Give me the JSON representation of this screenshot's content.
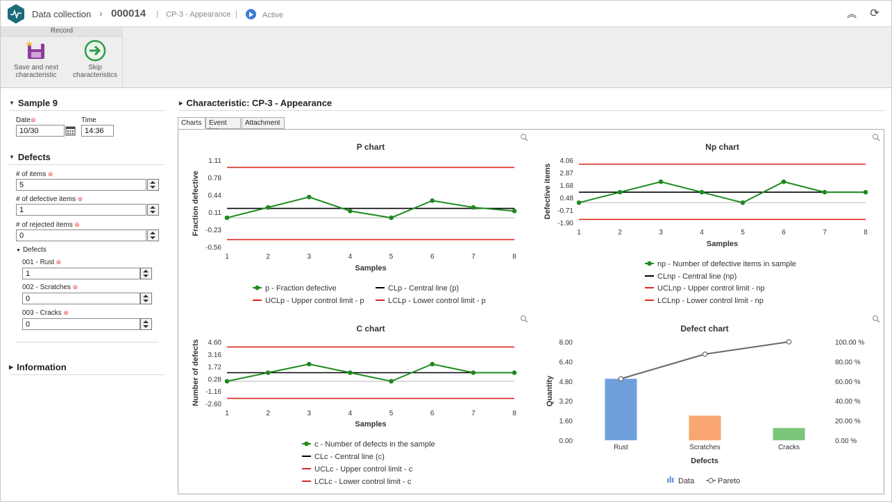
{
  "header": {
    "app_title": "Data collection",
    "record_id": "000014",
    "characteristic": "CP-3 - Appearance",
    "status": "Active"
  },
  "toolbar": {
    "group_label": "Record",
    "save_next_line1": "Save and next",
    "save_next_line2": "characteristic",
    "skip_line1": "Skip",
    "skip_line2": "characteristics"
  },
  "sample": {
    "title": "Sample 9",
    "date_label": "Date",
    "date_value": "10/30",
    "time_label": "Time",
    "time_value": "14:36"
  },
  "defects": {
    "title": "Defects",
    "items_label": "# of items",
    "items_value": "5",
    "defective_label": "# of defective items",
    "defective_value": "1",
    "rejected_label": "# of rejected items",
    "rejected_value": "0",
    "sub_title": "Defects",
    "list": [
      {
        "label": "001 - Rust",
        "value": "1"
      },
      {
        "label": "002 - Scratches",
        "value": "0"
      },
      {
        "label": "003 - Cracks",
        "value": "0"
      }
    ]
  },
  "information": {
    "title": "Information"
  },
  "main": {
    "title": "Characteristic: CP-3 - Appearance",
    "tabs": [
      "Charts",
      "Event log",
      "Attachment"
    ]
  },
  "chart_data": [
    {
      "type": "line",
      "title": "P chart",
      "xlabel": "Samples",
      "ylabel": "Fraction defective",
      "x": [
        1,
        2,
        3,
        4,
        5,
        6,
        7,
        8
      ],
      "yticks": [
        "1.11",
        "0.78",
        "0.44",
        "0.11",
        "-0.23",
        "-0.56"
      ],
      "ylim": [
        -0.56,
        1.11
      ],
      "series": [
        {
          "name": "p - Fraction defective",
          "values": [
            0,
            0.2,
            0.4,
            0.13,
            0,
            0.33,
            0.2,
            0.13
          ],
          "color": "#1e8a1e",
          "markers": true
        },
        {
          "name": "CLp - Central line (p)",
          "values": [
            0.18,
            0.18,
            0.18,
            0.18,
            0.18,
            0.18,
            0.18,
            0.18
          ],
          "color": "#000000"
        },
        {
          "name": "UCLp - Upper control limit - p",
          "values": [
            0.97,
            0.97,
            0.97,
            0.97,
            0.97,
            0.97,
            0.97,
            0.97
          ],
          "color": "#d9261c"
        },
        {
          "name": "LCLp - Lower control limit - p",
          "values": [
            -0.42,
            -0.42,
            -0.42,
            -0.42,
            -0.42,
            -0.42,
            -0.42,
            -0.42
          ],
          "color": "#d9261c"
        }
      ]
    },
    {
      "type": "line",
      "title": "Np chart",
      "xlabel": "Samples",
      "ylabel": "Defective items",
      "x": [
        1,
        2,
        3,
        4,
        5,
        6,
        7,
        8
      ],
      "yticks": [
        "4.06",
        "2.87",
        "1.68",
        "0.48",
        "-0.71",
        "-1.90"
      ],
      "ylim": [
        -1.9,
        4.06
      ],
      "series": [
        {
          "name": "np - Number of defective items in sample",
          "values": [
            0,
            1,
            2,
            1,
            0,
            2,
            1,
            1
          ],
          "color": "#1e8a1e",
          "markers": true
        },
        {
          "name": "CLnp - Central line (np)",
          "values": [
            1,
            1,
            1,
            1,
            1,
            1,
            1,
            1
          ],
          "color": "#000000"
        },
        {
          "name": "UCLnp - Upper control limit - np",
          "values": [
            3.68,
            3.68,
            3.68,
            3.68,
            3.68,
            3.68,
            3.68,
            3.68
          ],
          "color": "#d9261c"
        },
        {
          "name": "LCLnp - Lower control limit - np",
          "values": [
            -1.6,
            -1.6,
            -1.6,
            -1.6,
            -1.6,
            -1.6,
            -1.6,
            -1.6
          ],
          "color": "#d9261c"
        }
      ]
    },
    {
      "type": "line",
      "title": "C chart",
      "xlabel": "Samples",
      "ylabel": "Number of defects",
      "x": [
        1,
        2,
        3,
        4,
        5,
        6,
        7,
        8
      ],
      "yticks": [
        "4.60",
        "3.16",
        "1.72",
        "0.28",
        "-1.16",
        "-2.60"
      ],
      "ylim": [
        -2.6,
        4.6
      ],
      "series": [
        {
          "name": "c - Number of defects in the sample",
          "values": [
            0,
            1,
            2,
            1,
            0,
            2,
            1,
            1
          ],
          "color": "#1e8a1e",
          "markers": true
        },
        {
          "name": "CLc - Central line (c)",
          "values": [
            1,
            1,
            1,
            1,
            1,
            1,
            1,
            1
          ],
          "color": "#000000"
        },
        {
          "name": "UCLc - Upper control limit - c",
          "values": [
            4.0,
            4.0,
            4.0,
            4.0,
            4.0,
            4.0,
            4.0,
            4.0
          ],
          "color": "#d9261c"
        },
        {
          "name": "LCLc - Lower control limit - c",
          "values": [
            -2.0,
            -2.0,
            -2.0,
            -2.0,
            -2.0,
            -2.0,
            -2.0,
            -2.0
          ],
          "color": "#d9261c"
        }
      ]
    },
    {
      "type": "bar",
      "title": "Defect chart",
      "xlabel": "Defects",
      "ylabel": "Quantity",
      "categories": [
        "Rust",
        "Scratches",
        "Cracks"
      ],
      "yticks": [
        "8.00",
        "6.40",
        "4.80",
        "3.20",
        "1.60",
        "0.00"
      ],
      "y2ticks": [
        "100.00 %",
        "80.00 %",
        "60.00 %",
        "40.00 %",
        "20.00 %",
        "0.00 %"
      ],
      "ylim": [
        0,
        8
      ],
      "y2lim": [
        0,
        100
      ],
      "bar_colors": [
        "#6fa0dc",
        "#f9a671",
        "#7bc67b"
      ],
      "series": [
        {
          "name": "Data",
          "values": [
            5,
            2,
            1
          ]
        },
        {
          "name": "Pareto",
          "values": [
            62.5,
            87.5,
            100
          ]
        }
      ]
    }
  ]
}
